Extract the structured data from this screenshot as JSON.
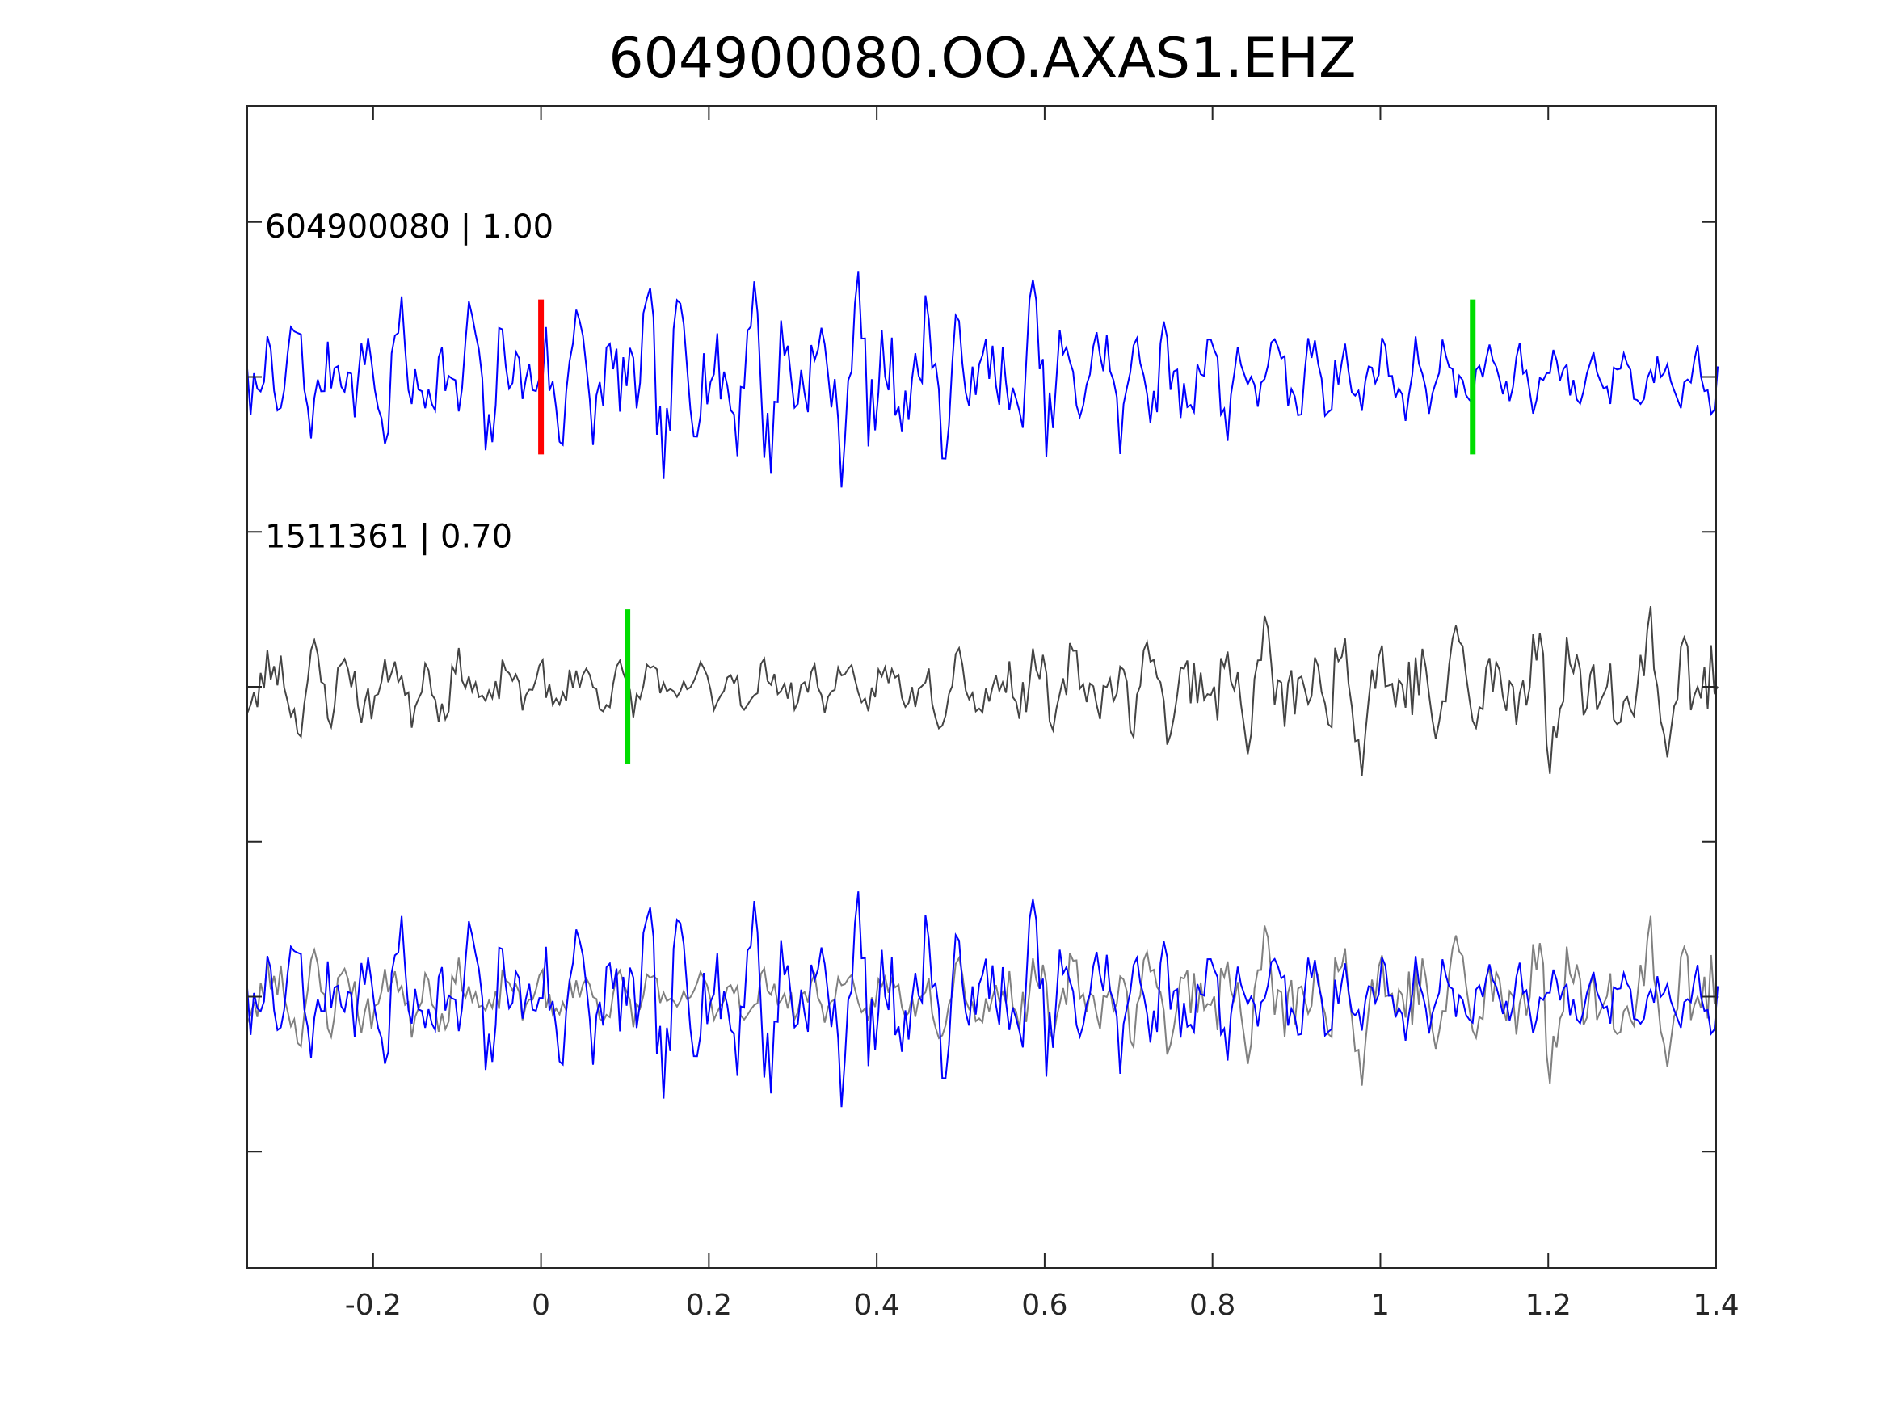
{
  "chart_data": {
    "type": "line",
    "title": "604900080.OO.AXAS1.EHZ",
    "xlabel": "",
    "ylabel": "",
    "xlim": [
      -0.35,
      1.4
    ],
    "ylim": [
      -7.5,
      7.5
    ],
    "grid": false,
    "x_ticks": [
      -0.2,
      0,
      0.2,
      0.4,
      0.6,
      0.8,
      1,
      1.2,
      1.4
    ],
    "x_tick_labels": [
      "-0.2",
      "0",
      "0.2",
      "0.4",
      "0.6",
      "0.8",
      "1",
      "1.2",
      "1.4"
    ],
    "y_ticks": [
      -6,
      -4,
      -2,
      0,
      2,
      4,
      6
    ],
    "sample_interval": 0.004,
    "traces": [
      {
        "label": "604900080 | 1.00",
        "color": "#0000ff",
        "offset": 4,
        "seed": 7,
        "amplitude": 0.85,
        "freq": 24
      },
      {
        "label": "1511361 | 0.70",
        "color": "#444444",
        "offset": 0,
        "seed": 23,
        "amplitude": 0.7,
        "freq": 22
      }
    ],
    "overlay": {
      "offset": -4,
      "colors": [
        "#808080",
        "#0000ff"
      ]
    },
    "picks": [
      {
        "trace": 0,
        "x": 0.0,
        "color": "#ff0000"
      },
      {
        "trace": 0,
        "x": 1.11,
        "color": "#00dd00"
      },
      {
        "trace": 1,
        "x": 0.103,
        "color": "#00dd00"
      }
    ]
  }
}
